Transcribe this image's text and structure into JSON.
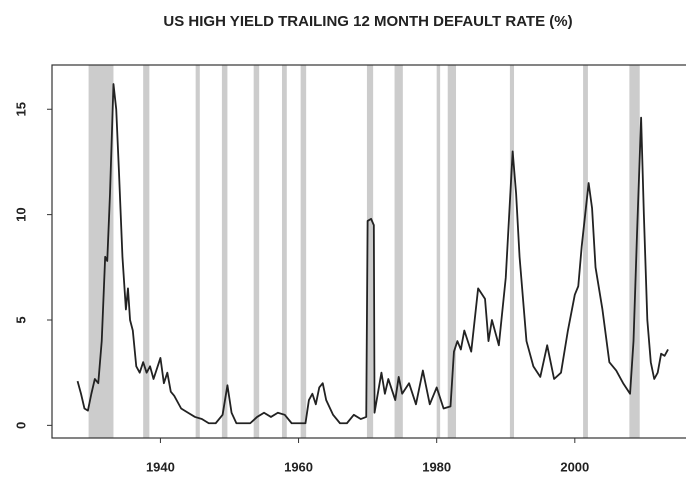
{
  "chart_data": {
    "type": "line",
    "title": "US HIGH YIELD TRAILING 12 MONTH DEFAULT RATE (%)",
    "xlim": [
      1924.3,
      2016.1
    ],
    "ylim": [
      -0.6,
      17.1
    ],
    "xticks": [
      1940,
      1960,
      1980,
      2000
    ],
    "yticks": [
      0,
      5,
      10,
      15
    ],
    "color": "#222222",
    "shade_color": "#cccccc",
    "recessions": [
      [
        1929.6,
        1933.2
      ],
      [
        1937.5,
        1938.4
      ],
      [
        1945.1,
        1945.7
      ],
      [
        1948.9,
        1949.7
      ],
      [
        1953.5,
        1954.3
      ],
      [
        1957.6,
        1958.3
      ],
      [
        1960.3,
        1961.1
      ],
      [
        1969.9,
        1970.8
      ],
      [
        1973.9,
        1975.1
      ],
      [
        1980.0,
        1980.5
      ],
      [
        1981.6,
        1982.8
      ],
      [
        1990.6,
        1991.2
      ],
      [
        2001.2,
        2001.9
      ],
      [
        2007.9,
        2009.4
      ]
    ],
    "x": [
      1928,
      1928.5,
      1929,
      1929.5,
      1930,
      1930.5,
      1931,
      1931.5,
      1932,
      1932.3,
      1932.7,
      1933.2,
      1933.6,
      1934,
      1934.5,
      1935,
      1935.3,
      1935.6,
      1936,
      1936.5,
      1937,
      1937.5,
      1938,
      1938.5,
      1939,
      1940,
      1940.5,
      1941,
      1941.5,
      1942,
      1943,
      1944,
      1945,
      1946,
      1947,
      1948,
      1949,
      1949.7,
      1950.3,
      1951,
      1953,
      1954,
      1955,
      1956,
      1957,
      1958,
      1959,
      1961,
      1961.5,
      1962,
      1962.5,
      1963,
      1963.5,
      1964,
      1965,
      1966,
      1967,
      1968,
      1969,
      1969.8,
      1970,
      1970.5,
      1970.9,
      1971,
      1972,
      1972.5,
      1973,
      1974,
      1974.5,
      1975,
      1976,
      1977,
      1978,
      1979,
      1980,
      1981,
      1982,
      1982.5,
      1983,
      1983.5,
      1984,
      1985,
      1986,
      1987,
      1987.5,
      1988,
      1989,
      1990,
      1991,
      1991.5,
      1992,
      1993,
      1994,
      1995,
      1996,
      1997,
      1998,
      1999,
      2000,
      2000.5,
      2001,
      2002,
      2002.5,
      2003,
      2004,
      2005,
      2006,
      2007,
      2008,
      2008.5,
      2009,
      2009.6,
      2010,
      2010.5,
      2011,
      2011.5,
      2012,
      2012.5,
      2013,
      2013.5
    ],
    "values": [
      2.1,
      1.5,
      0.8,
      0.7,
      1.5,
      2.2,
      2,
      4,
      8,
      7.8,
      11,
      16.2,
      15,
      12,
      8,
      5.5,
      6.5,
      5,
      4.5,
      2.8,
      2.5,
      3,
      2.5,
      2.8,
      2.2,
      3.2,
      2,
      2.5,
      1.6,
      1.4,
      0.8,
      0.6,
      0.4,
      0.3,
      0.1,
      0.1,
      0.5,
      1.9,
      0.6,
      0.1,
      0.1,
      0.4,
      0.6,
      0.4,
      0.6,
      0.5,
      0.1,
      0.1,
      1.2,
      1.5,
      1.0,
      1.8,
      2.0,
      1.2,
      0.5,
      0.1,
      0.1,
      0.5,
      0.3,
      0.4,
      9.7,
      9.8,
      9.5,
      0.6,
      2.5,
      1.5,
      2.2,
      1.2,
      2.3,
      1.5,
      2,
      1,
      2.6,
      1,
      1.8,
      0.8,
      0.9,
      3.5,
      4,
      3.6,
      4.5,
      3.5,
      6.5,
      6,
      4,
      5,
      3.8,
      7,
      13,
      11,
      8,
      4,
      2.8,
      2.3,
      3.8,
      2.2,
      2.5,
      4.5,
      6.2,
      6.6,
      8.5,
      11.5,
      10.3,
      7.5,
      5.5,
      3,
      2.6,
      2,
      1.5,
      4,
      9,
      14.6,
      10,
      5,
      3,
      2.2,
      2.5,
      3.4,
      3.3,
      3.6
    ]
  }
}
